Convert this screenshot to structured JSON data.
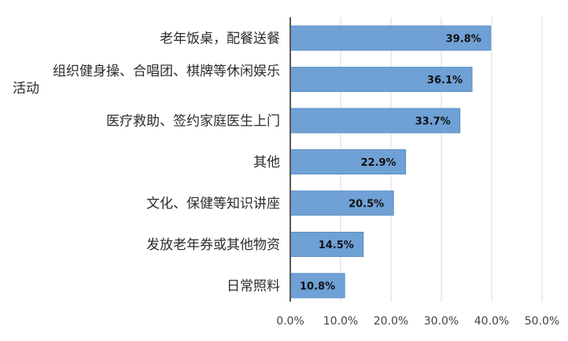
{
  "chart_data": {
    "type": "bar",
    "orientation": "horizontal",
    "title": "",
    "xlabel": "",
    "ylabel": "",
    "categories": [
      [
        "老年饭桌，配餐送餐"
      ],
      [
        "组织健身操、合唱团、棋牌等休闲娱乐",
        "活动"
      ],
      [
        "医疗救助、签约家庭医生上门"
      ],
      [
        "其他"
      ],
      [
        "文化、保健等知识讲座"
      ],
      [
        "发放老年券或其他物资"
      ],
      [
        "日常照料"
      ]
    ],
    "values": [
      39.8,
      36.1,
      33.7,
      22.9,
      20.5,
      14.5,
      10.8
    ],
    "data_labels": [
      "39.8%",
      "36.1%",
      "33.7%",
      "22.9%",
      "20.5%",
      "14.5%",
      "10.8%"
    ],
    "xlim": [
      0,
      50
    ],
    "x_ticks": [
      0,
      10,
      20,
      30,
      40,
      50
    ],
    "x_tick_labels": [
      "0.0%",
      "10.0%",
      "20.0%",
      "30.0%",
      "40.0%",
      "50.0%"
    ],
    "grid": "vertical",
    "legend": "none",
    "bar_color": "#6fa1d6",
    "bar_edge_color": "#5b8fc4"
  }
}
